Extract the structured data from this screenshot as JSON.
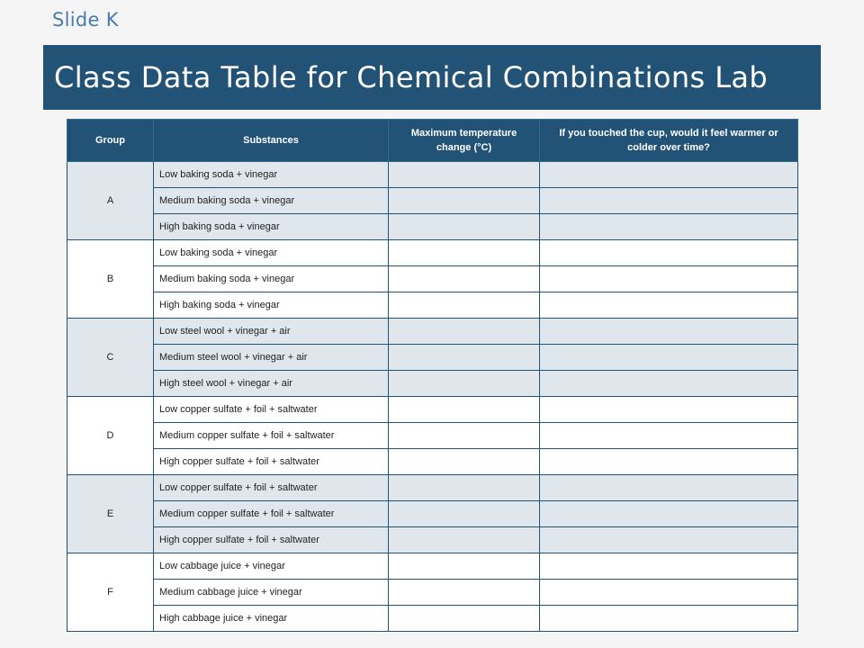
{
  "slide": {
    "label": "Slide K"
  },
  "title": "Class Data Table for Chemical Combinations Lab",
  "table": {
    "headers": {
      "group": "Group",
      "substances": "Substances",
      "max_temp": "Maximum temperature change (°C)",
      "feel": "If you touched the cup, would it feel warmer or colder over time?"
    },
    "groups": [
      {
        "name": "A",
        "rows": [
          "Low baking soda + vinegar",
          "Medium baking soda + vinegar",
          "High baking soda + vinegar"
        ]
      },
      {
        "name": "B",
        "rows": [
          "Low baking soda + vinegar",
          "Medium baking soda + vinegar",
          "High baking soda + vinegar"
        ]
      },
      {
        "name": "C",
        "rows": [
          "Low steel wool + vinegar + air",
          "Medium steel wool + vinegar + air",
          "High steel wool + vinegar + air"
        ]
      },
      {
        "name": "D",
        "rows": [
          "Low copper sulfate + foil + saltwater",
          "Medium copper sulfate + foil + saltwater",
          "High copper sulfate + foil + saltwater"
        ]
      },
      {
        "name": "E",
        "rows": [
          "Low copper sulfate + foil + saltwater",
          "Medium copper sulfate + foil + saltwater",
          "High copper sulfate + foil + saltwater"
        ]
      },
      {
        "name": "F",
        "rows": [
          "Low cabbage juice + vinegar",
          "Medium cabbage juice + vinegar",
          "High cabbage juice + vinegar"
        ]
      }
    ]
  },
  "colors": {
    "header_bg": "#225377",
    "shade_row": "#dfe7ec",
    "plain_row": "#ffffff",
    "slide_label": "#4a7bae"
  }
}
